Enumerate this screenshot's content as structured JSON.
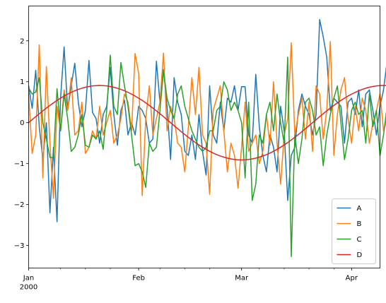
{
  "chart_data": {
    "type": "line",
    "x_start": "2000-01-01",
    "x_end": "2000-04-09",
    "x_freq": "D",
    "xlim": [
      "2000-01-01",
      "2000-04-09"
    ],
    "ylim": [
      -3.55,
      2.85
    ],
    "yticks": [
      -3,
      -2,
      -1,
      0,
      1,
      2
    ],
    "xticks": [
      {
        "date": "2000-01-01",
        "label": "Jan"
      },
      {
        "date": "2000-02-01",
        "label": "Feb"
      },
      {
        "date": "2000-03-01",
        "label": "Mar"
      },
      {
        "date": "2000-04-01",
        "label": "Apr"
      }
    ],
    "x_year_label": "2000",
    "grid": false,
    "legend_position": "lower-right",
    "series": [
      {
        "name": "A",
        "color": "#1f77b4",
        "values": [
          0.9,
          0.35,
          1.28,
          -0.1,
          -0.9,
          0.0,
          -2.2,
          -0.6,
          -2.42,
          0.6,
          1.85,
          0.3,
          0.9,
          1.45,
          0.5,
          -0.1,
          0.3,
          1.52,
          0.25,
          0.1,
          -0.5,
          0.2,
          0.4,
          1.35,
          0.2,
          -0.55,
          0.3,
          0.55,
          -0.3,
          0.0,
          -0.3,
          0.4,
          0.3,
          0.1,
          -0.5,
          -0.4,
          1.5,
          0.5,
          1.3,
          0.4,
          -0.9,
          1.1,
          0.5,
          0.2,
          -0.7,
          -0.8,
          -0.3,
          -0.9,
          0.2,
          -0.7,
          -1.28,
          0.9,
          -0.3,
          -0.5,
          0.5,
          -0.2,
          0.6,
          0.5,
          0.9,
          0.3,
          0.88,
          0.88,
          -0.3,
          -0.5,
          1.18,
          -0.1,
          -0.8,
          -1.2,
          -0.3,
          -0.6,
          -1.2,
          0.4,
          -0.2,
          -1.9,
          -0.8,
          -0.6,
          0.3,
          0.7,
          0.4,
          0.2,
          -0.3,
          0.2,
          2.52,
          2.1,
          1.6,
          0.3,
          0.6,
          0.5,
          0.4,
          -0.5,
          0.5,
          0.6,
          0.2,
          0.8,
          -0.1,
          0.7,
          0.8,
          0.3,
          -0.3,
          0.4,
          0.8,
          1.5,
          0.5,
          2.3,
          1.1,
          0.3,
          -0.4,
          -0.3,
          -1.0,
          -1.8,
          -2.25,
          -0.6,
          -2.05,
          0.1,
          0.3,
          1.2,
          0.9,
          2.15,
          0.4,
          0.5,
          0.3,
          0.2,
          0.6,
          0.5,
          1.16,
          1.15,
          -0.25
        ]
      },
      {
        "name": "B",
        "color": "#ff7f0e",
        "values": [
          0.7,
          -0.75,
          -0.3,
          1.9,
          -1.35,
          1.37,
          -0.5,
          -1.85,
          0.4,
          -0.2,
          0.8,
          0.3,
          1.1,
          -0.3,
          -0.2,
          0.5,
          -0.75,
          -0.6,
          -0.2,
          -0.4,
          0.4,
          -0.3,
          0.0,
          0.3,
          -0.5,
          -0.3,
          0.1,
          0.7,
          0.5,
          -0.2,
          1.69,
          1.2,
          -1.78,
          0.1,
          0.9,
          -0.3,
          0.1,
          0.5,
          1.7,
          -0.2,
          0.4,
          0.1,
          -0.5,
          -0.6,
          -1.2,
          -0.1,
          1.1,
          0.2,
          1.35,
          -0.3,
          -0.5,
          -1.75,
          0.3,
          0.6,
          0.9,
          -0.2,
          -1.2,
          -0.5,
          -0.8,
          -1.6,
          -0.6,
          0.5,
          -0.7,
          -0.5,
          -0.3,
          -1.0,
          -0.7,
          0.2,
          -0.55,
          1.0,
          -0.5,
          -1.5,
          -0.3,
          0.1,
          1.95,
          -0.3,
          0.2,
          0.6,
          -0.4,
          0.5,
          -0.7,
          0.9,
          0.7,
          -0.4,
          0.3,
          1.98,
          -0.8,
          0.2,
          0.8,
          1.1,
          0.1,
          -0.5,
          0.4,
          -0.2,
          0.6,
          0.3,
          -0.5,
          0.0,
          0.3,
          0.7,
          -0.2,
          0.1,
          -0.4,
          -0.75,
          2.05,
          0.9,
          0.2,
          1.35,
          1.25,
          -0.1,
          0.3,
          0.7,
          -0.3,
          0.8,
          0.2,
          -0.4,
          -0.5,
          -0.8,
          0.6,
          0.3,
          -0.3,
          -0.6,
          -0.5,
          -0.7,
          -1.9,
          -0.5,
          1.05,
          0.2,
          -0.4,
          1.1
        ]
      },
      {
        "name": "C",
        "color": "#2ca02c",
        "values": [
          0.85,
          0.7,
          0.75,
          1.1,
          0.0,
          -0.4,
          -0.85,
          -0.85,
          0.83,
          -0.2,
          0.7,
          0.1,
          -0.7,
          -0.6,
          -0.3,
          0.2,
          -0.55,
          -0.6,
          -0.3,
          -0.4,
          -0.2,
          -0.65,
          0.3,
          1.65,
          0.4,
          0.2,
          1.47,
          0.9,
          0.4,
          -0.3,
          -1.05,
          -1.0,
          -1.2,
          -1.58,
          -0.5,
          -0.7,
          -0.6,
          0.3,
          1.27,
          0.6,
          0.3,
          0.1,
          0.7,
          0.9,
          0.4,
          0.1,
          -0.2,
          -0.4,
          -0.6,
          -0.7,
          -0.6,
          -0.2,
          -0.2,
          0.3,
          0.4,
          1.0,
          0.8,
          0.3,
          0.5,
          0.3,
          0.0,
          -1.35,
          0.5,
          -1.9,
          -1.5,
          -0.3,
          -0.5,
          0.2,
          0.5,
          -0.2,
          0.7,
          0.0,
          -0.5,
          1.6,
          -3.27,
          -0.3,
          -1.0,
          -0.4,
          0.5,
          0.6,
          0.3,
          -0.3,
          -0.1,
          -1.05,
          -0.3,
          0.2,
          0.6,
          0.9,
          0.0,
          -0.9,
          -0.4,
          0.3,
          0.5,
          0.2,
          0.3,
          -0.5,
          0.7,
          -0.1,
          0.3,
          -0.8,
          -0.3,
          0.4,
          0.8,
          0.1,
          -0.6,
          -2.1,
          -0.9,
          -0.3,
          0.5,
          1.25,
          0.7,
          -0.6,
          1.0,
          -1.3,
          -0.3,
          0.4,
          0.8,
          0.2,
          0.8,
          0.5,
          -0.2,
          0.5,
          1.4,
          0.8,
          -1.15,
          -1.3,
          -1.5,
          -1.62
        ]
      },
      {
        "name": "D",
        "color": "#d62728",
        "values": [
          0.0,
          0.074,
          0.147,
          0.219,
          0.289,
          0.357,
          0.422,
          0.485,
          0.544,
          0.599,
          0.651,
          0.698,
          0.741,
          0.78,
          0.813,
          0.842,
          0.866,
          0.884,
          0.898,
          0.906,
          0.909,
          0.906,
          0.898,
          0.884,
          0.866,
          0.842,
          0.813,
          0.78,
          0.741,
          0.698,
          0.651,
          0.599,
          0.544,
          0.485,
          0.422,
          0.357,
          0.289,
          0.219,
          0.147,
          0.074,
          0.0,
          -0.074,
          -0.147,
          -0.219,
          -0.289,
          -0.357,
          -0.422,
          -0.485,
          -0.544,
          -0.599,
          -0.651,
          -0.698,
          -0.741,
          -0.78,
          -0.813,
          -0.842,
          -0.866,
          -0.884,
          -0.898,
          -0.906,
          -0.909,
          -0.906,
          -0.898,
          -0.884,
          -0.866,
          -0.842,
          -0.813,
          -0.78,
          -0.741,
          -0.698,
          -0.651,
          -0.599,
          -0.544,
          -0.485,
          -0.422,
          -0.357,
          -0.289,
          -0.219,
          -0.147,
          -0.074,
          0.0,
          0.074,
          0.147,
          0.219,
          0.289,
          0.357,
          0.422,
          0.485,
          0.544,
          0.599,
          0.651,
          0.698,
          0.741,
          0.78,
          0.813,
          0.842,
          0.866,
          0.884,
          0.898,
          0.906,
          0.909,
          0.906,
          0.898,
          0.884,
          0.866,
          0.842,
          0.813,
          0.78,
          0.741,
          0.698,
          0.651,
          0.599,
          0.544,
          0.485,
          0.422,
          0.357,
          0.289,
          0.219,
          0.147,
          0.074,
          0.0,
          -0.074,
          -0.147,
          -0.219,
          -0.289,
          -0.357,
          -0.422,
          -0.485,
          -0.544
        ]
      }
    ]
  }
}
